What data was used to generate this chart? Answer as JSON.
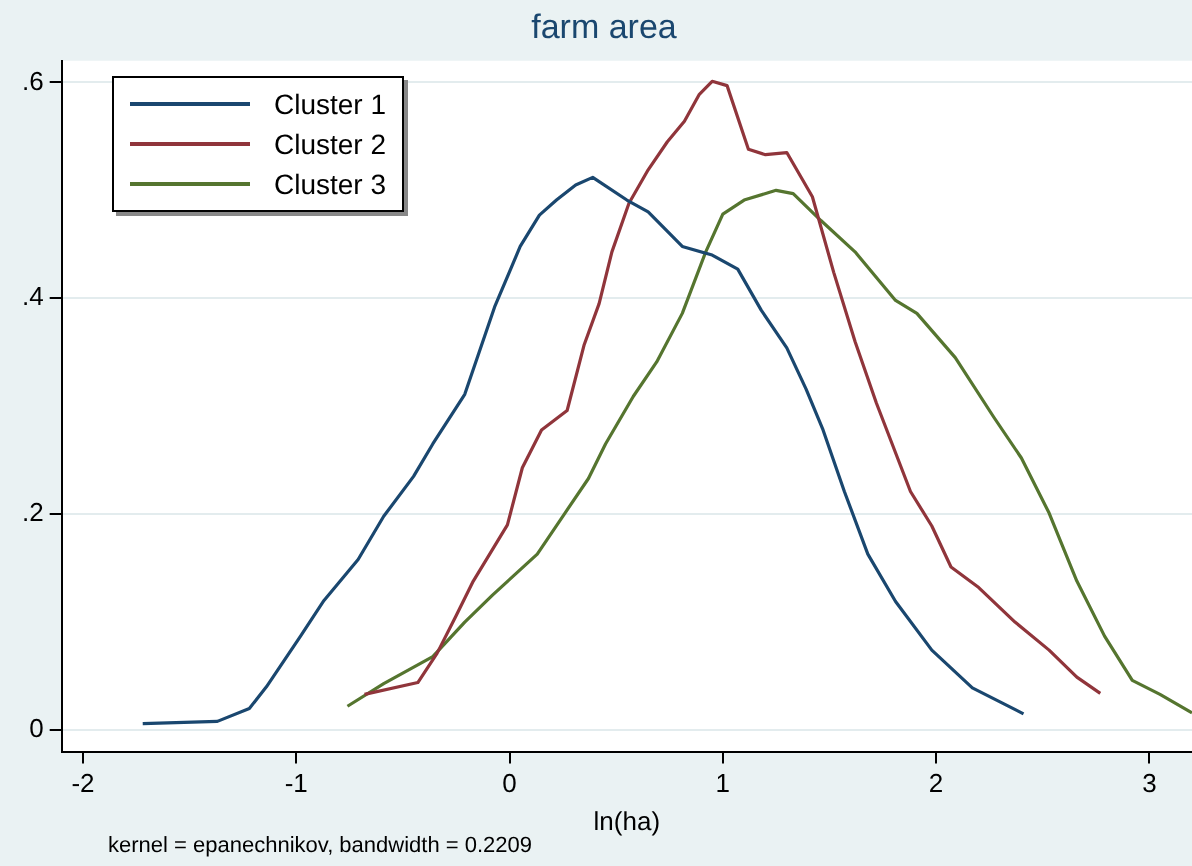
{
  "chart_data": {
    "type": "line",
    "title": "farm area",
    "xlabel": "ln(ha)",
    "annotations": [
      "kernel = epanechnikov, bandwidth = 0.2209"
    ],
    "xlim": [
      -2.1,
      3.2
    ],
    "xticks": [
      -2,
      -1,
      0,
      1,
      2,
      3
    ],
    "ylim": [
      -0.02,
      0.62
    ],
    "yticks": [
      {
        "value": 0,
        "label": "0"
      },
      {
        "value": 0.2,
        "label": ".2"
      },
      {
        "value": 0.4,
        "label": ".4"
      },
      {
        "value": 0.6,
        "label": ".6"
      }
    ],
    "grid": "y",
    "legend": "top left",
    "marker": "none",
    "line_style": "solid",
    "series": [
      {
        "name": "Cluster 1",
        "color": "#1a476f",
        "x": [
          -1.72,
          -1.37,
          -1.22,
          -1.14,
          -0.98,
          -0.87,
          -0.71,
          -0.59,
          -0.45,
          -0.36,
          -0.21,
          -0.07,
          0.05,
          0.14,
          0.22,
          0.31,
          0.39,
          0.55,
          0.65,
          0.81,
          0.95,
          1.07,
          1.18,
          1.3,
          1.39,
          1.47,
          1.57,
          1.68,
          1.81,
          1.98,
          2.17,
          2.41
        ],
        "values": [
          0.006,
          0.008,
          0.02,
          0.04,
          0.087,
          0.12,
          0.158,
          0.198,
          0.235,
          0.265,
          0.311,
          0.392,
          0.448,
          0.477,
          0.491,
          0.505,
          0.512,
          0.491,
          0.48,
          0.448,
          0.44,
          0.427,
          0.389,
          0.354,
          0.316,
          0.278,
          0.221,
          0.163,
          0.119,
          0.074,
          0.039,
          0.015
        ]
      },
      {
        "name": "Cluster 2",
        "color": "#90353b",
        "x": [
          -0.68,
          -0.43,
          -0.34,
          -0.25,
          -0.17,
          -0.01,
          0.06,
          0.15,
          0.27,
          0.35,
          0.42,
          0.48,
          0.56,
          0.65,
          0.74,
          0.82,
          0.89,
          0.95,
          1.02,
          1.12,
          1.2,
          1.3,
          1.42,
          1.52,
          1.62,
          1.72,
          1.88,
          1.98,
          2.07,
          2.2,
          2.37,
          2.53,
          2.66,
          2.77
        ],
        "values": [
          0.033,
          0.044,
          0.071,
          0.106,
          0.138,
          0.19,
          0.243,
          0.278,
          0.296,
          0.357,
          0.395,
          0.443,
          0.488,
          0.519,
          0.545,
          0.564,
          0.589,
          0.601,
          0.597,
          0.538,
          0.533,
          0.535,
          0.494,
          0.424,
          0.36,
          0.303,
          0.221,
          0.189,
          0.151,
          0.132,
          0.1,
          0.074,
          0.049,
          0.034
        ]
      },
      {
        "name": "Cluster 3",
        "color": "#55752f",
        "x": [
          -0.76,
          -0.59,
          -0.36,
          -0.21,
          -0.08,
          0.13,
          0.26,
          0.37,
          0.45,
          0.58,
          0.69,
          0.81,
          0.92,
          1.0,
          1.1,
          1.25,
          1.33,
          1.46,
          1.62,
          1.81,
          1.91,
          2.09,
          2.27,
          2.4,
          2.53,
          2.66,
          2.79,
          2.92,
          3.05,
          3.2
        ],
        "values": [
          0.022,
          0.043,
          0.068,
          0.1,
          0.125,
          0.163,
          0.201,
          0.233,
          0.265,
          0.309,
          0.341,
          0.386,
          0.443,
          0.478,
          0.491,
          0.5,
          0.497,
          0.472,
          0.443,
          0.398,
          0.386,
          0.345,
          0.29,
          0.252,
          0.201,
          0.138,
          0.087,
          0.046,
          0.033,
          0.016
        ]
      }
    ]
  }
}
